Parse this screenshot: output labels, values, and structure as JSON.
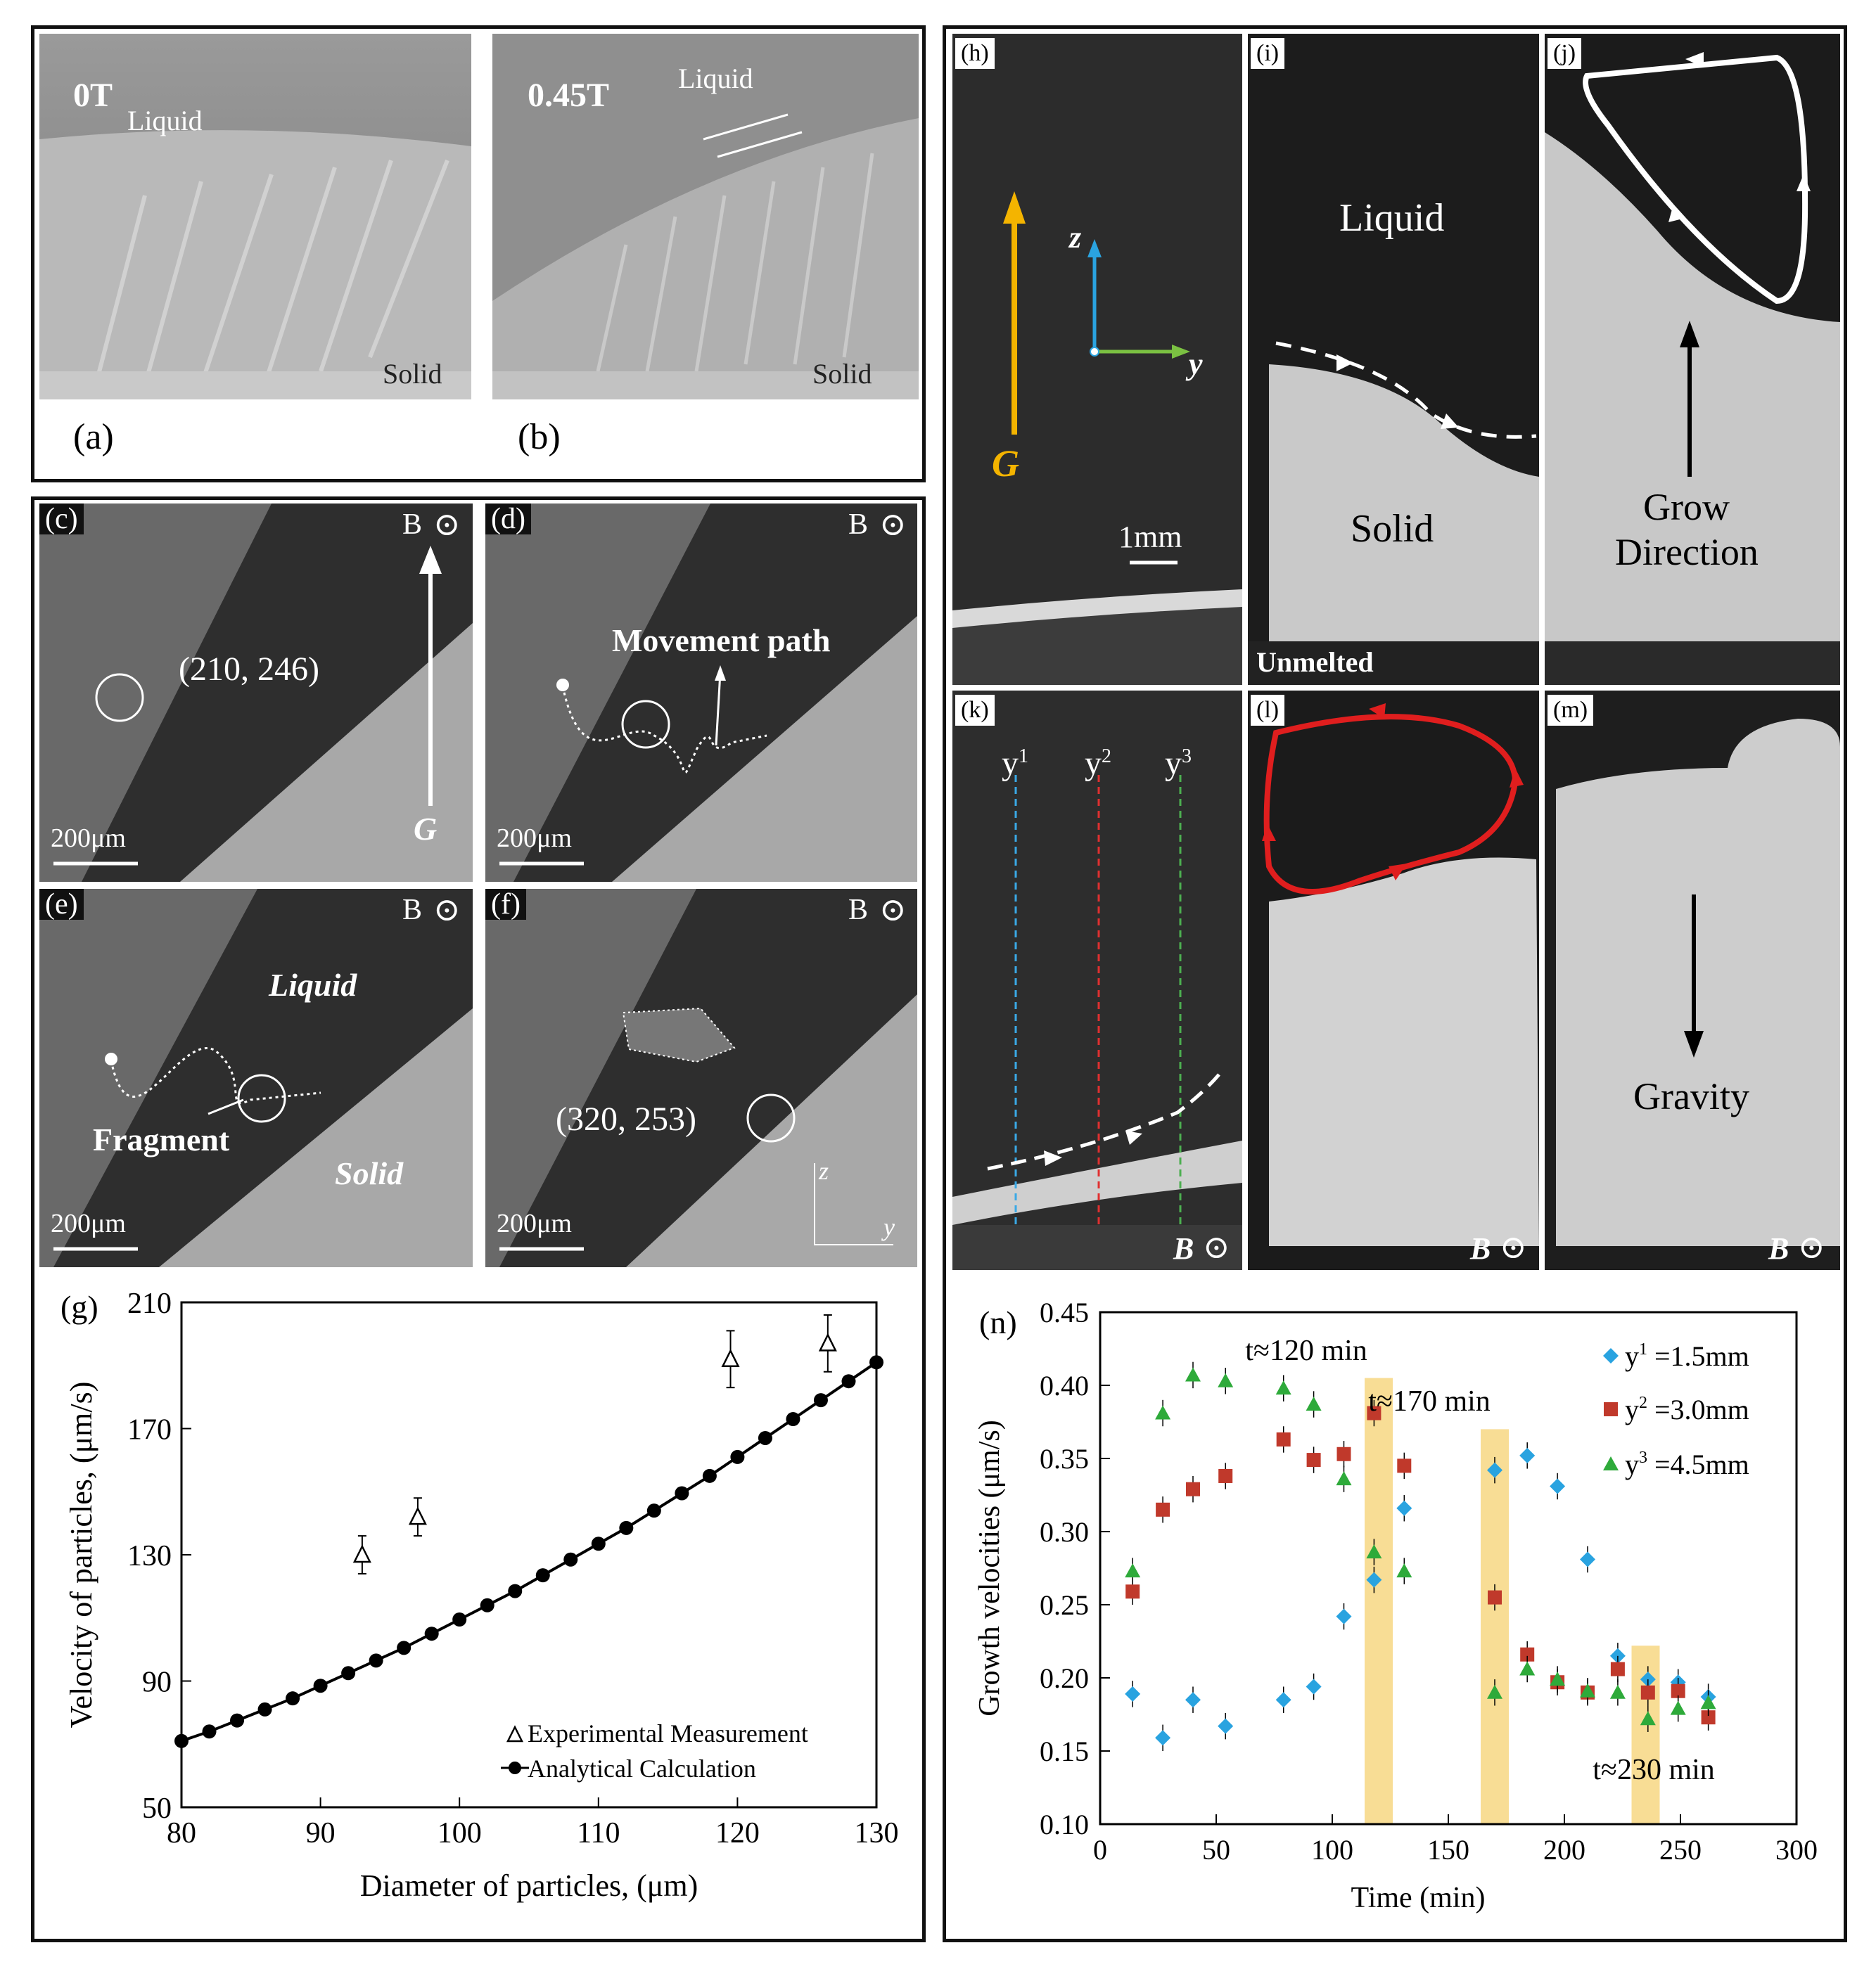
{
  "panels": {
    "a": {
      "label": "(a)",
      "field": "0T",
      "liquid": "Liquid",
      "solid": "Solid"
    },
    "b": {
      "label": "(b)",
      "field": "0.45T",
      "liquid": "Liquid",
      "solid": "Solid"
    },
    "c": {
      "label": "(c)",
      "b": "B",
      "coord": "(210, 246)",
      "g": "G",
      "scale": "200μm"
    },
    "d": {
      "label": "(d)",
      "b": "B",
      "path": "Movement path",
      "scale": "200μm"
    },
    "e": {
      "label": "(e)",
      "b": "B",
      "liquid": "Liquid",
      "fragment": "Fragment",
      "solid": "Solid",
      "scale": "200μm"
    },
    "f": {
      "label": "(f)",
      "b": "B",
      "coord": "(320, 253)",
      "scale": "200μm",
      "z": "z",
      "y": "y"
    },
    "h": {
      "label": "(h)",
      "g": "G",
      "z": "z",
      "y": "y",
      "scale": "1mm"
    },
    "i": {
      "label": "(i)",
      "liquid": "Liquid",
      "solid": "Solid",
      "unmelted": "Unmelted"
    },
    "j": {
      "label": "(j)",
      "grow1": "Grow",
      "grow2": "Direction"
    },
    "k": {
      "label": "(k)",
      "y1": "y",
      "y1s": "1",
      "y2": "y",
      "y2s": "2",
      "y3": "y",
      "y3s": "3",
      "b": "B"
    },
    "l": {
      "label": "(l)",
      "b": "B"
    },
    "m": {
      "label": "(m)",
      "gravity": "Gravity",
      "b": "B"
    }
  },
  "chart_g": {
    "label": "(g)",
    "xlabel": "Diameter of  particles, (μm)",
    "ylabel": "Velocity of particles, (μm/s)",
    "legend_exp": "Experimental Measurement",
    "legend_calc": "Analytical Calculation"
  },
  "chart_n": {
    "label": "(n)",
    "xlabel": "Time (min)",
    "ylabel": "Growth velocities (μm/s)",
    "ann1": "t≈120 min",
    "ann2": "t≈170 min",
    "ann3": "t≈230 min",
    "leg1": "y",
    "leg1s": "1",
    "leg1v": " =1.5mm",
    "leg2": "y",
    "leg2s": "2",
    "leg2v": " =3.0mm",
    "leg3": "y",
    "leg3s": "3",
    "leg3v": " =4.5mm"
  },
  "chart_data": [
    {
      "type": "scatter",
      "xlabel": "Diameter of  particles, (μm)",
      "ylabel": "Velocity of particles, (μm/s)",
      "xlim": [
        80,
        130
      ],
      "ylim": [
        50,
        210
      ],
      "xticks": [
        80,
        90,
        100,
        110,
        120,
        130
      ],
      "yticks": [
        50,
        90,
        130,
        170,
        210
      ],
      "series": [
        {
          "name": "Experimental Measurement",
          "x": [
            93,
            97,
            119.5,
            126.5
          ],
          "y": [
            130,
            142,
            192,
            197
          ],
          "err": [
            6,
            6,
            9,
            9
          ]
        },
        {
          "name": "Analytical Calculation",
          "x": [
            80,
            82,
            84,
            86,
            88,
            90,
            92,
            94,
            96,
            98,
            100,
            102,
            104,
            106,
            108,
            110,
            112,
            114,
            116,
            118,
            120,
            122,
            124,
            126,
            128,
            130
          ],
          "y": [
            71,
            74,
            77.5,
            81,
            84.5,
            88.5,
            92.5,
            96.5,
            100.5,
            105,
            109.5,
            114,
            118.5,
            123.5,
            128.5,
            133.5,
            138.5,
            144,
            149.5,
            155,
            161,
            167,
            173,
            179,
            185,
            191
          ]
        }
      ]
    },
    {
      "type": "scatter",
      "xlabel": "Time (min)",
      "ylabel": "Growth velocities (μm/s)",
      "xlim": [
        0,
        300
      ],
      "ylim": [
        0.1,
        0.45
      ],
      "xticks": [
        0,
        50,
        100,
        150,
        200,
        250,
        300
      ],
      "yticks": [
        0.1,
        0.15,
        0.2,
        0.25,
        0.3,
        0.35,
        0.4,
        0.45
      ],
      "highlight_bands": [
        120,
        170,
        235
      ],
      "series": [
        {
          "name": "y1=1.5mm",
          "color": "#29a3e0",
          "x": [
            14,
            27,
            40,
            54,
            79,
            92,
            105,
            118,
            131,
            170,
            184,
            197,
            210,
            223,
            236,
            249,
            262
          ],
          "y": [
            0.189,
            0.159,
            0.185,
            0.167,
            0.185,
            0.194,
            0.242,
            0.267,
            0.316,
            0.342,
            0.352,
            0.331,
            0.281,
            0.215,
            0.199,
            0.197,
            0.187
          ]
        },
        {
          "name": "y2=3.0mm",
          "color": "#c0392b",
          "x": [
            14,
            27,
            40,
            54,
            79,
            92,
            105,
            118,
            131,
            170,
            184,
            197,
            210,
            223,
            236,
            249,
            262
          ],
          "y": [
            0.259,
            0.315,
            0.329,
            0.338,
            0.363,
            0.349,
            0.353,
            0.381,
            0.345,
            0.255,
            0.216,
            0.197,
            0.19,
            0.206,
            0.19,
            0.191,
            0.173
          ]
        },
        {
          "name": "y3=4.5mm",
          "color": "#2eaa3a",
          "x": [
            14,
            27,
            40,
            54,
            79,
            92,
            105,
            118,
            131,
            170,
            184,
            197,
            210,
            223,
            236,
            249,
            262
          ],
          "y": [
            0.273,
            0.381,
            0.407,
            0.403,
            0.398,
            0.387,
            0.336,
            0.286,
            0.273,
            0.19,
            0.206,
            0.199,
            0.191,
            0.19,
            0.172,
            0.179,
            0.183
          ]
        }
      ]
    }
  ]
}
